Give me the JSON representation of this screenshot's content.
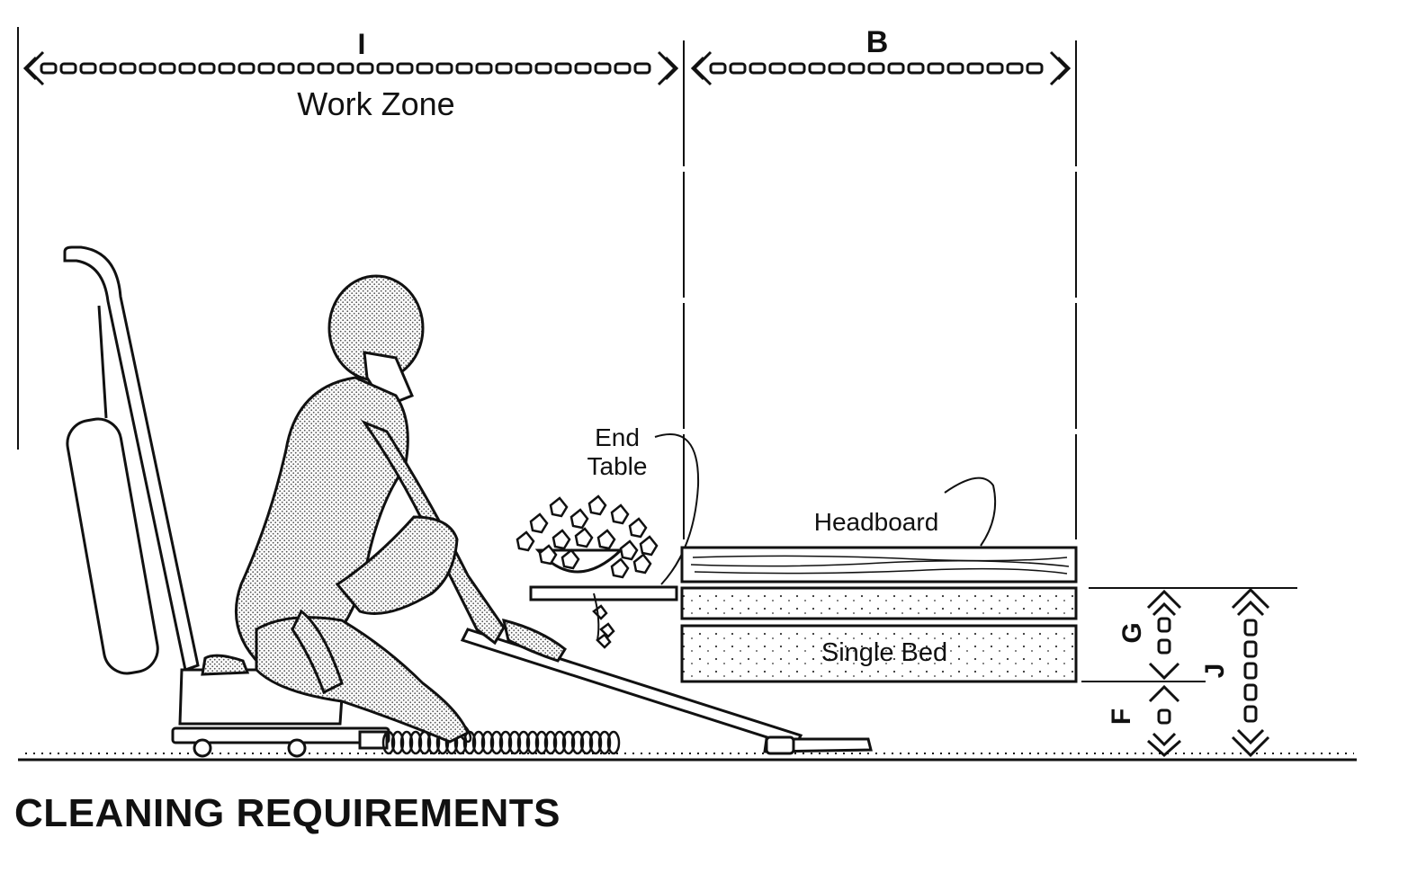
{
  "title": "CLEANING REQUIREMENTS",
  "dimensions": {
    "work_zone_letter": "I",
    "work_zone_label": "Work Zone",
    "bed_width_letter": "B",
    "bed_clearance_letter": "G",
    "floor_clearance_letter": "F",
    "total_height_letter": "J"
  },
  "labels": {
    "end_table_line1": "End",
    "end_table_line2": "Table",
    "headboard": "Headboard",
    "single_bed": "Single Bed"
  },
  "colors": {
    "ink": "#111111",
    "paper": "#ffffff",
    "stipple": "#9a9a9a"
  }
}
